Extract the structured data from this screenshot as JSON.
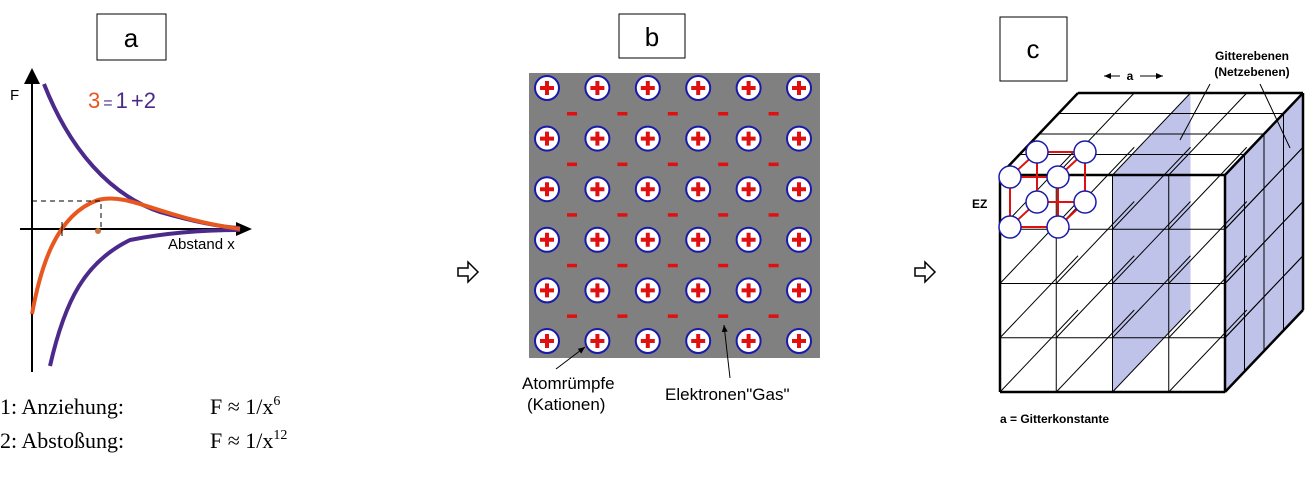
{
  "panel_a": {
    "label": "a",
    "y_axis": "F",
    "equation": {
      "lhs": "3",
      "eq": "=",
      "t1": "1",
      "plus": "+2"
    },
    "x_axis": "Abstand x"
  },
  "formulas": [
    {
      "term": "1: Anziehung:",
      "formula": "F ≈ 1/x",
      "exponent": "6"
    },
    {
      "term": "2: Abstoßung:",
      "formula": "F ≈ 1/x",
      "exponent": "12"
    }
  ],
  "panel_b": {
    "label": "b",
    "ions": [
      "Atomrümpfe",
      "(Kationen)"
    ],
    "electrons": "Elektronen\"Gas\""
  },
  "panel_c": {
    "label": "c",
    "spacing": "a",
    "planes": [
      "Gitterebenen",
      "(Netzebenen)"
    ],
    "cell": "EZ",
    "caption": "a = Gitterkonstante"
  }
}
